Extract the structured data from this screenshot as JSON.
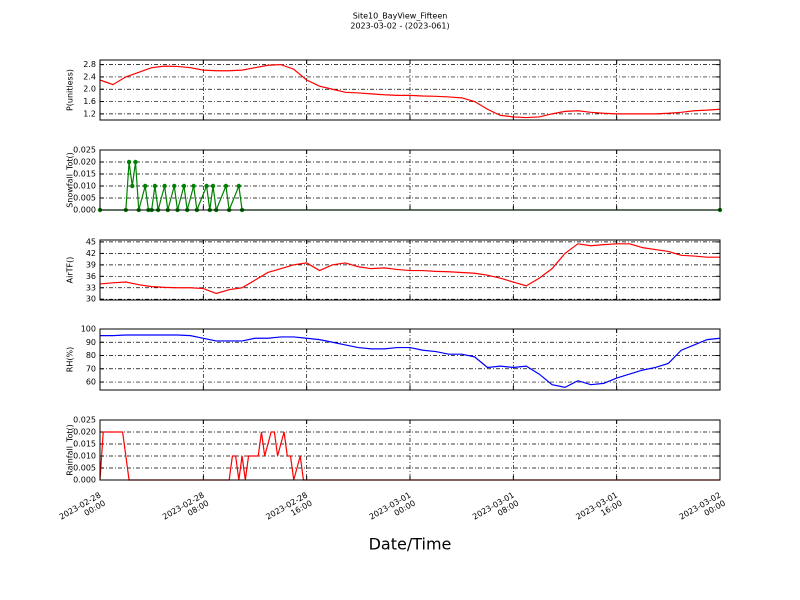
{
  "chart_data": [
    {
      "type": "line",
      "title": "Site10_BayView_Fifteen",
      "subtitle": "2023-03-02 - (2023-061)",
      "ylabel": "P(unitless)",
      "color": "#ff0000",
      "x": [
        "2023-02-28 00:00",
        "2023-02-28 01:00",
        "2023-02-28 02:00",
        "2023-02-28 03:00",
        "2023-02-28 04:00",
        "2023-02-28 05:00",
        "2023-02-28 06:00",
        "2023-02-28 07:00",
        "2023-02-28 08:00",
        "2023-02-28 09:00",
        "2023-02-28 10:00",
        "2023-02-28 11:00",
        "2023-02-28 12:00",
        "2023-02-28 13:00",
        "2023-02-28 14:00",
        "2023-02-28 15:00",
        "2023-02-28 16:00",
        "2023-02-28 17:00",
        "2023-02-28 18:00",
        "2023-02-28 19:00",
        "2023-02-28 20:00",
        "2023-02-28 21:00",
        "2023-02-28 22:00",
        "2023-02-28 23:00",
        "2023-03-01 00:00",
        "2023-03-01 01:00",
        "2023-03-01 02:00",
        "2023-03-01 03:00",
        "2023-03-01 04:00",
        "2023-03-01 05:00",
        "2023-03-01 06:00",
        "2023-03-01 07:00",
        "2023-03-01 08:00",
        "2023-03-01 09:00",
        "2023-03-01 10:00",
        "2023-03-01 11:00",
        "2023-03-01 12:00",
        "2023-03-01 13:00",
        "2023-03-01 14:00",
        "2023-03-01 15:00",
        "2023-03-01 16:00",
        "2023-03-01 17:00",
        "2023-03-01 18:00",
        "2023-03-01 19:00",
        "2023-03-01 20:00",
        "2023-03-01 21:00",
        "2023-03-01 22:00",
        "2023-03-01 23:00",
        "2023-03-02 00:00"
      ],
      "values": [
        2.3,
        2.15,
        2.4,
        2.55,
        2.7,
        2.75,
        2.74,
        2.7,
        2.62,
        2.6,
        2.6,
        2.62,
        2.7,
        2.78,
        2.8,
        2.65,
        2.3,
        2.1,
        2.0,
        1.9,
        1.88,
        1.85,
        1.82,
        1.8,
        1.8,
        1.78,
        1.77,
        1.75,
        1.72,
        1.6,
        1.35,
        1.15,
        1.1,
        1.08,
        1.1,
        1.2,
        1.28,
        1.3,
        1.25,
        1.22,
        1.2,
        1.2,
        1.2,
        1.2,
        1.22,
        1.25,
        1.3,
        1.32,
        1.35
      ],
      "ylim": [
        1.0,
        2.95
      ],
      "yticks": [
        1.2,
        1.6,
        {
          "value": 2.0,
          "label": "2.0"
        },
        2.4,
        2.8
      ],
      "grid": true
    },
    {
      "type": "line",
      "ylabel": "Snowfall_Tot()",
      "color": "#008000",
      "markers": true,
      "x": [
        "2023-02-28 00:00",
        "2023-02-28 02:00",
        "2023-02-28 02:15",
        "2023-02-28 02:30",
        "2023-02-28 02:45",
        "2023-02-28 03:00",
        "2023-02-28 03:30",
        "2023-02-28 03:45",
        "2023-02-28 04:00",
        "2023-02-28 04:15",
        "2023-02-28 04:30",
        "2023-02-28 05:00",
        "2023-02-28 05:15",
        "2023-02-28 05:45",
        "2023-02-28 06:00",
        "2023-02-28 06:30",
        "2023-02-28 06:45",
        "2023-02-28 07:15",
        "2023-02-28 07:30",
        "2023-02-28 08:15",
        "2023-02-28 08:30",
        "2023-02-28 08:45",
        "2023-02-28 09:00",
        "2023-02-28 09:45",
        "2023-02-28 10:00",
        "2023-02-28 10:45",
        "2023-02-28 11:00",
        "2023-03-02 00:00"
      ],
      "values": [
        0,
        0,
        0.02,
        0.01,
        0.02,
        0,
        0.01,
        0,
        0,
        0.01,
        0,
        0.01,
        0,
        0.01,
        0,
        0.01,
        0,
        0.01,
        0,
        0.01,
        0,
        0.01,
        0,
        0.01,
        0,
        0.01,
        0,
        0
      ],
      "ylim": [
        0,
        0.025
      ],
      "yticks": [
        {
          "value": 0,
          "label": "0.000"
        },
        {
          "value": 0.005,
          "label": "0.005"
        },
        {
          "value": 0.01,
          "label": "0.010"
        },
        {
          "value": 0.015,
          "label": "0.015"
        },
        {
          "value": 0.02,
          "label": "0.020"
        },
        {
          "value": 0.025,
          "label": "0.025"
        }
      ],
      "grid": true
    },
    {
      "type": "line",
      "ylabel": "AirTF()",
      "color": "#ff0000",
      "x": [
        "2023-02-28 00:00",
        "2023-02-28 01:00",
        "2023-02-28 02:00",
        "2023-02-28 03:00",
        "2023-02-28 04:00",
        "2023-02-28 05:00",
        "2023-02-28 06:00",
        "2023-02-28 07:00",
        "2023-02-28 08:00",
        "2023-02-28 09:00",
        "2023-02-28 10:00",
        "2023-02-28 11:00",
        "2023-02-28 12:00",
        "2023-02-28 13:00",
        "2023-02-28 14:00",
        "2023-02-28 15:00",
        "2023-02-28 16:00",
        "2023-02-28 17:00",
        "2023-02-28 18:00",
        "2023-02-28 19:00",
        "2023-02-28 20:00",
        "2023-02-28 21:00",
        "2023-02-28 22:00",
        "2023-02-28 23:00",
        "2023-03-01 00:00",
        "2023-03-01 01:00",
        "2023-03-01 02:00",
        "2023-03-01 03:00",
        "2023-03-01 04:00",
        "2023-03-01 05:00",
        "2023-03-01 06:00",
        "2023-03-01 07:00",
        "2023-03-01 08:00",
        "2023-03-01 09:00",
        "2023-03-01 10:00",
        "2023-03-01 11:00",
        "2023-03-01 12:00",
        "2023-03-01 13:00",
        "2023-03-01 14:00",
        "2023-03-01 15:00",
        "2023-03-01 16:00",
        "2023-03-01 17:00",
        "2023-03-01 18:00",
        "2023-03-01 19:00",
        "2023-03-01 20:00",
        "2023-03-01 21:00",
        "2023-03-01 22:00",
        "2023-03-01 23:00",
        "2023-03-02 00:00"
      ],
      "values": [
        34,
        34.3,
        34.5,
        33.8,
        33.3,
        33.1,
        33,
        33,
        32.8,
        31.5,
        32.5,
        33,
        35,
        37,
        38,
        39,
        39.5,
        37.5,
        39,
        39.5,
        38.5,
        38,
        38.2,
        37.8,
        37.5,
        37.5,
        37.3,
        37.2,
        37,
        36.8,
        36.3,
        35.5,
        34.5,
        33.5,
        35.5,
        38,
        42,
        44.5,
        44,
        44.3,
        44.5,
        44.5,
        43.5,
        43,
        42.5,
        41.5,
        41.3,
        41,
        41
      ],
      "ylim": [
        29.8,
        45.5
      ],
      "yticks": [
        30,
        33,
        36,
        39,
        42,
        45
      ],
      "grid": true
    },
    {
      "type": "line",
      "ylabel": "RH(%)",
      "color": "#0000ff",
      "x": [
        "2023-02-28 00:00",
        "2023-02-28 01:00",
        "2023-02-28 02:00",
        "2023-02-28 03:00",
        "2023-02-28 04:00",
        "2023-02-28 05:00",
        "2023-02-28 06:00",
        "2023-02-28 07:00",
        "2023-02-28 08:00",
        "2023-02-28 09:00",
        "2023-02-28 10:00",
        "2023-02-28 11:00",
        "2023-02-28 12:00",
        "2023-02-28 13:00",
        "2023-02-28 14:00",
        "2023-02-28 15:00",
        "2023-02-28 16:00",
        "2023-02-28 17:00",
        "2023-02-28 18:00",
        "2023-02-28 19:00",
        "2023-02-28 20:00",
        "2023-02-28 21:00",
        "2023-02-28 22:00",
        "2023-02-28 23:00",
        "2023-03-01 00:00",
        "2023-03-01 01:00",
        "2023-03-01 02:00",
        "2023-03-01 03:00",
        "2023-03-01 04:00",
        "2023-03-01 05:00",
        "2023-03-01 06:00",
        "2023-03-01 07:00",
        "2023-03-01 08:00",
        "2023-03-01 09:00",
        "2023-03-01 10:00",
        "2023-03-01 11:00",
        "2023-03-01 12:00",
        "2023-03-01 13:00",
        "2023-03-01 14:00",
        "2023-03-01 15:00",
        "2023-03-01 16:00",
        "2023-03-01 17:00",
        "2023-03-01 18:00",
        "2023-03-01 19:00",
        "2023-03-01 20:00",
        "2023-03-01 21:00",
        "2023-03-01 22:00",
        "2023-03-01 23:00",
        "2023-03-02 00:00"
      ],
      "values": [
        95,
        95,
        95.5,
        95.5,
        95.5,
        95.5,
        95.5,
        95,
        93,
        91,
        91,
        91,
        93,
        93,
        94,
        94,
        93,
        92,
        90,
        88,
        86,
        85,
        85,
        86,
        86,
        84,
        83,
        81,
        81,
        79,
        71,
        72,
        71,
        72,
        66,
        58,
        56,
        61,
        58,
        59,
        63,
        66,
        69,
        71,
        74,
        84,
        88,
        92,
        93
      ],
      "ylim": [
        54,
        100
      ],
      "yticks": [
        60,
        70,
        80,
        90,
        100
      ],
      "grid": true
    },
    {
      "type": "line",
      "ylabel": "Rainfall_Tot()",
      "xlabel": "Date/Time",
      "color": "#ff0000",
      "x": [
        "2023-02-28 00:00",
        "2023-02-28 00:15",
        "2023-02-28 01:45",
        "2023-02-28 02:15",
        "2023-02-28 10:00",
        "2023-02-28 10:15",
        "2023-02-28 10:30",
        "2023-02-28 10:45",
        "2023-02-28 11:00",
        "2023-02-28 11:15",
        "2023-02-28 11:30",
        "2023-02-28 12:15",
        "2023-02-28 12:30",
        "2023-02-28 12:45",
        "2023-02-28 13:15",
        "2023-02-28 13:30",
        "2023-02-28 13:45",
        "2023-02-28 14:15",
        "2023-02-28 14:30",
        "2023-02-28 14:45",
        "2023-02-28 15:00",
        "2023-02-28 15:30",
        "2023-02-28 15:45",
        "2023-03-02 00:00"
      ],
      "values": [
        0,
        0.02,
        0.02,
        0,
        0,
        0.01,
        0.01,
        0,
        0.01,
        0,
        0.01,
        0.01,
        0.02,
        0.01,
        0.02,
        0.02,
        0.01,
        0.02,
        0.01,
        0.01,
        0,
        0.01,
        0,
        0
      ],
      "ylim": [
        0,
        0.025
      ],
      "yticks": [
        {
          "value": 0,
          "label": "0.000"
        },
        {
          "value": 0.005,
          "label": "0.005"
        },
        {
          "value": 0.01,
          "label": "0.010"
        },
        {
          "value": 0.015,
          "label": "0.015"
        },
        {
          "value": 0.02,
          "label": "0.020"
        },
        {
          "value": 0.025,
          "label": "0.025"
        }
      ],
      "grid": true,
      "xlim": [
        "2023-02-28 00:00",
        "2023-03-02 00:00"
      ],
      "xticks": [
        "2023-02-28 00:00",
        "2023-02-28 08:00",
        "2023-02-28 16:00",
        "2023-03-01 00:00",
        "2023-03-01 08:00",
        "2023-03-01 16:00",
        "2023-03-02 00:00"
      ]
    }
  ]
}
